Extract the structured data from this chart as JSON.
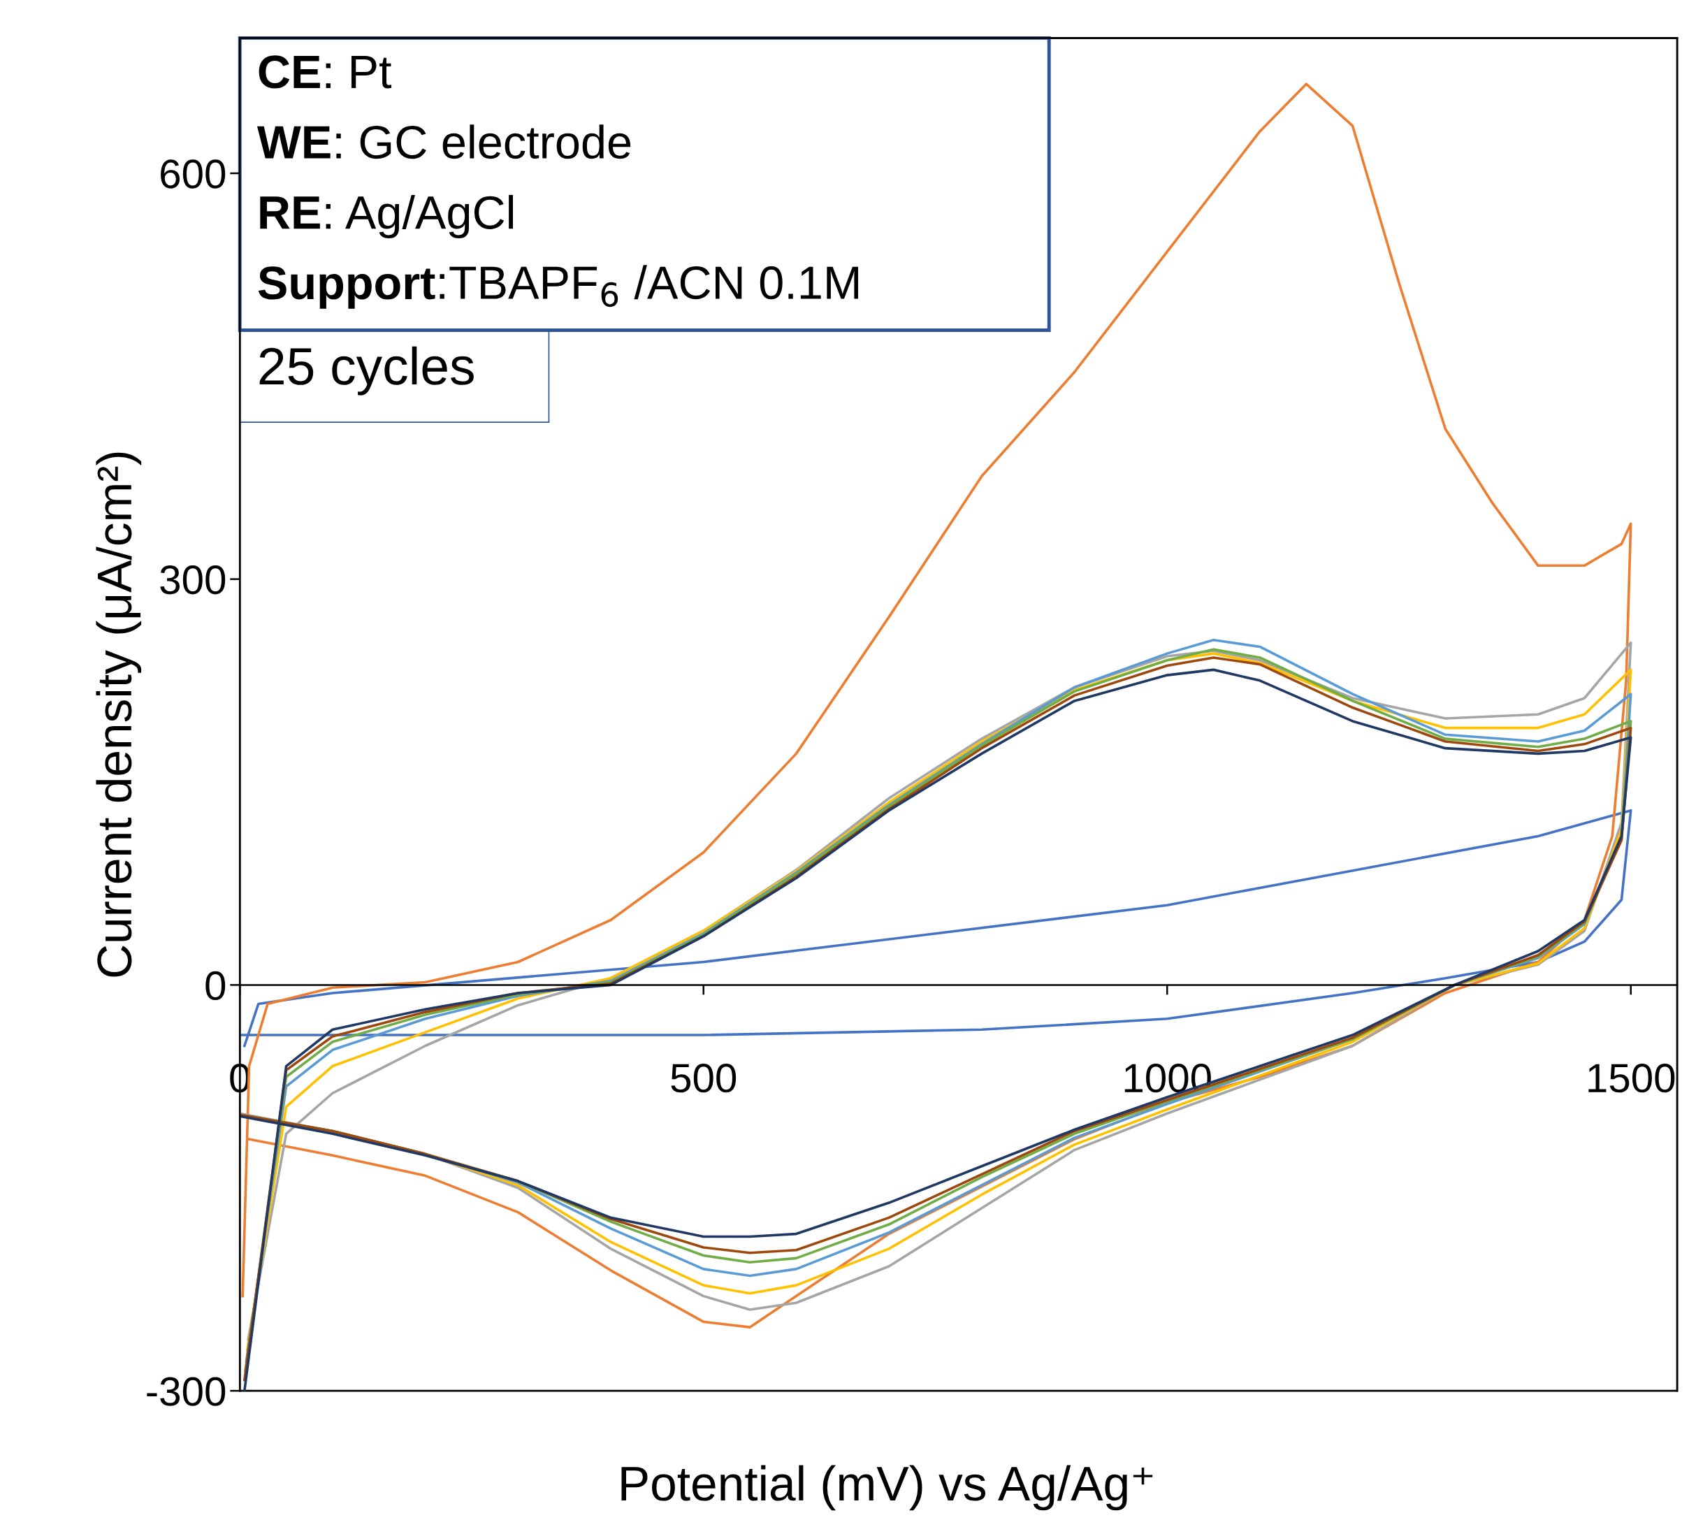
{
  "chart_data": {
    "type": "line",
    "xlabel": "Potential (mV) vs Ag/Ag⁺",
    "ylabel": "Current density (μA/cm²)",
    "xlim": [
      0,
      1550
    ],
    "ylim": [
      -300,
      700
    ],
    "xticks": [
      0,
      500,
      1000,
      1500
    ],
    "yticks": [
      -300,
      0,
      300,
      600
    ],
    "grid": false,
    "legend": false,
    "marker": "none",
    "line_style": "solid",
    "annotations": [
      "CE: Pt",
      "WE: GC electrode",
      "RE: Ag/AgCl",
      "Support:TBAPF$_{6}$ /ACN 0.1M",
      "25 cycles"
    ],
    "series": [
      {
        "color": "#4472c4",
        "x": [
          5,
          20,
          100,
          500,
          1000,
          1400,
          1500,
          1490,
          1450,
          1400,
          1300,
          1200,
          1000,
          800,
          500,
          0
        ],
        "values": [
          -45,
          -14,
          -6,
          17,
          59,
          110,
          129,
          63,
          32,
          17,
          5,
          -6,
          -25,
          -33,
          -37,
          -37
        ]
      },
      {
        "color": "#ed7d31",
        "x": [
          3,
          10,
          30,
          100,
          200,
          300,
          400,
          500,
          600,
          700,
          800,
          900,
          1000,
          1100,
          1150,
          1200,
          1250,
          1300,
          1350,
          1400,
          1450,
          1490,
          1500,
          1495,
          1480,
          1450,
          1400,
          1300,
          1200,
          1100,
          1000,
          900,
          800,
          700,
          600,
          550,
          500,
          400,
          300,
          200,
          100,
          10
        ],
        "values": [
          -230,
          -60,
          -14,
          -2,
          2,
          17,
          48,
          98,
          171,
          272,
          376,
          453,
          542,
          631,
          666,
          635,
          519,
          411,
          357,
          310,
          310,
          326,
          341,
          225,
          110,
          48,
          17,
          -6,
          -45,
          -68,
          -87,
          -114,
          -149,
          -184,
          -230,
          -253,
          -249,
          -211,
          -168,
          -141,
          -126,
          -114
        ]
      },
      {
        "color": "#a5a5a5",
        "x": [
          9,
          50,
          100,
          200,
          300,
          400,
          500,
          600,
          700,
          800,
          900,
          1000,
          1050,
          1100,
          1200,
          1300,
          1400,
          1450,
          1500,
          1490,
          1450,
          1400,
          1310,
          1200,
          1100,
          1000,
          900,
          800,
          700,
          600,
          550,
          500,
          400,
          300,
          200,
          100,
          0
        ],
        "values": [
          -262,
          -110,
          -80,
          -45,
          -15,
          5,
          40,
          85,
          138,
          182,
          220,
          243,
          247,
          240,
          212,
          197,
          200,
          212,
          253,
          120,
          40,
          15,
          0,
          -45,
          -70,
          -95,
          -122,
          -165,
          -208,
          -235,
          -240,
          -230,
          -195,
          -150,
          -125,
          -108,
          -95
        ]
      },
      {
        "color": "#ffc000",
        "x": [
          8,
          50,
          100,
          200,
          300,
          400,
          500,
          600,
          700,
          800,
          900,
          1000,
          1050,
          1100,
          1200,
          1300,
          1400,
          1450,
          1500,
          1490,
          1450,
          1400,
          1310,
          1200,
          1100,
          1000,
          900,
          800,
          700,
          600,
          550,
          500,
          400,
          300,
          200,
          100,
          0
        ],
        "values": [
          -270,
          -90,
          -60,
          -35,
          -10,
          5,
          40,
          84,
          135,
          180,
          218,
          240,
          245,
          238,
          210,
          190,
          190,
          200,
          233,
          115,
          42,
          16,
          0,
          -42,
          -67,
          -92,
          -118,
          -155,
          -195,
          -222,
          -228,
          -222,
          -190,
          -148,
          -125,
          -108,
          -96
        ]
      },
      {
        "color": "#5b9bd5",
        "x": [
          7,
          50,
          100,
          200,
          300,
          400,
          500,
          600,
          700,
          800,
          900,
          1000,
          1050,
          1100,
          1200,
          1300,
          1400,
          1450,
          1500,
          1490,
          1450,
          1400,
          1310,
          1200,
          1100,
          1000,
          900,
          800,
          700,
          600,
          550,
          500,
          400,
          300,
          200,
          100,
          0
        ],
        "values": [
          -278,
          -75,
          -48,
          -25,
          -8,
          3,
          38,
          83,
          133,
          178,
          220,
          245,
          255,
          250,
          215,
          185,
          180,
          188,
          215,
          110,
          45,
          20,
          0,
          -40,
          -64,
          -88,
          -113,
          -148,
          -183,
          -210,
          -215,
          -210,
          -180,
          -146,
          -125,
          -108,
          -96
        ]
      },
      {
        "color": "#70ad47",
        "x": [
          6,
          50,
          100,
          200,
          300,
          400,
          500,
          600,
          700,
          800,
          900,
          1000,
          1050,
          1100,
          1200,
          1300,
          1400,
          1450,
          1500,
          1490,
          1450,
          1400,
          1310,
          1200,
          1100,
          1000,
          900,
          800,
          700,
          600,
          550,
          500,
          400,
          300,
          200,
          100,
          0
        ],
        "values": [
          -285,
          -68,
          -42,
          -22,
          -7,
          2,
          37,
          82,
          132,
          177,
          217,
          240,
          248,
          242,
          210,
          182,
          176,
          182,
          195,
          108,
          46,
          21,
          0,
          -40,
          -63,
          -86,
          -110,
          -142,
          -177,
          -202,
          -205,
          -200,
          -175,
          -145,
          -125,
          -108,
          -96
        ]
      },
      {
        "color": "#9e480e",
        "x": [
          5,
          50,
          100,
          200,
          300,
          400,
          500,
          600,
          700,
          800,
          900,
          1000,
          1050,
          1100,
          1200,
          1300,
          1400,
          1450,
          1500,
          1490,
          1450,
          1400,
          1310,
          1200,
          1100,
          1000,
          900,
          800,
          700,
          600,
          550,
          500,
          400,
          300,
          200,
          100,
          0
        ],
        "values": [
          -292,
          -63,
          -38,
          -20,
          -6,
          1,
          36,
          80,
          130,
          175,
          214,
          236,
          242,
          237,
          205,
          180,
          173,
          178,
          190,
          107,
          47,
          22,
          0,
          -39,
          -62,
          -85,
          -108,
          -140,
          -172,
          -196,
          -198,
          -194,
          -173,
          -145,
          -125,
          -108,
          -96
        ]
      },
      {
        "color": "#203864",
        "x": [
          5,
          50,
          100,
          200,
          300,
          400,
          500,
          600,
          700,
          800,
          900,
          1000,
          1050,
          1100,
          1200,
          1300,
          1400,
          1450,
          1500,
          1490,
          1450,
          1400,
          1310,
          1200,
          1100,
          1000,
          900,
          800,
          700,
          600,
          550,
          500,
          400,
          300,
          200,
          100,
          0
        ],
        "values": [
          -300,
          -60,
          -33,
          -18,
          -6,
          0,
          36,
          79,
          129,
          171,
          210,
          229,
          233,
          225,
          195,
          175,
          171,
          173,
          183,
          110,
          48,
          25,
          0,
          -37,
          -60,
          -83,
          -107,
          -134,
          -161,
          -184,
          -186,
          -186,
          -172,
          -145,
          -126,
          -110,
          -97
        ]
      }
    ]
  }
}
